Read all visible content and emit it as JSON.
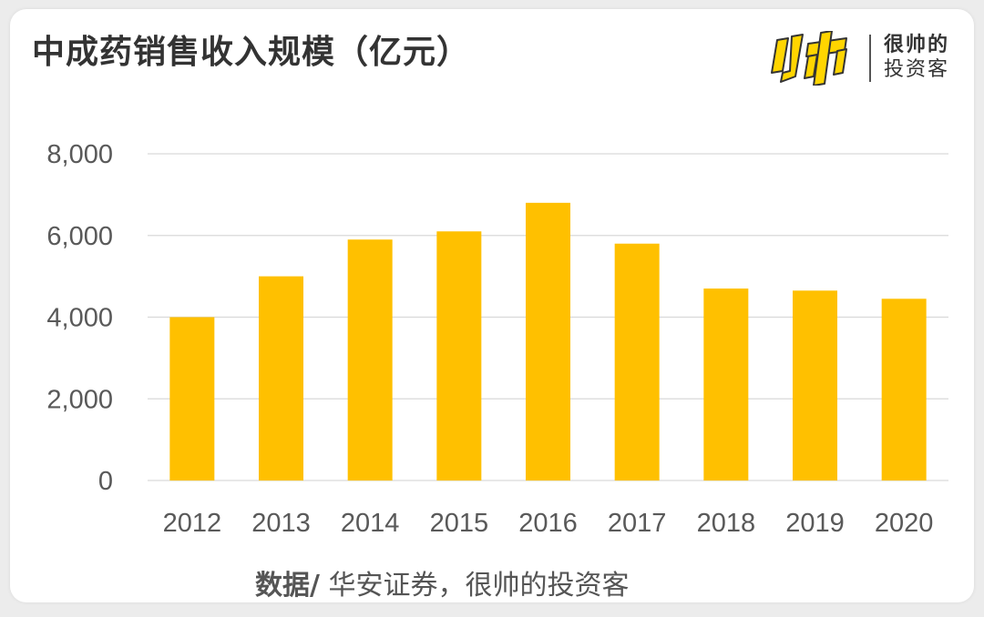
{
  "colors": {
    "bar": "#FFC000",
    "grid": "#D9D9D9",
    "axis_text": "#595959",
    "title": "#333333",
    "logo_yellow": "#FFD500"
  },
  "logo": {
    "name_line1": "很帅的",
    "name_line2": "投资客",
    "mark_icon": "shuai-brand-mark-icon"
  },
  "chart_data": {
    "type": "bar",
    "title": "中成药销售收入规模（亿元）",
    "xlabel": "",
    "ylabel": "",
    "categories": [
      "2012",
      "2013",
      "2014",
      "2015",
      "2016",
      "2017",
      "2018",
      "2019",
      "2020"
    ],
    "values": [
      4000,
      5000,
      5900,
      6100,
      6800,
      5800,
      4700,
      4650,
      4450
    ],
    "ylim": [
      0,
      8000
    ],
    "yticks": [
      0,
      2000,
      4000,
      6000,
      8000
    ],
    "ytick_labels": [
      "0",
      "2,000",
      "4,000",
      "6,000",
      "8,000"
    ],
    "grid": true,
    "legend": "none"
  },
  "source": {
    "label": "数据/",
    "text": " 华安证券，很帅的投资客"
  }
}
